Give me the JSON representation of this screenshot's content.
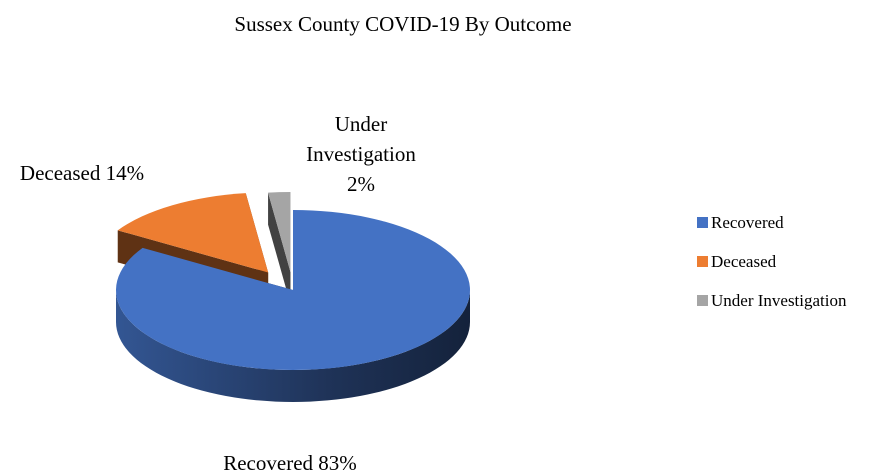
{
  "chart_data": {
    "type": "pie",
    "title": "Sussex County COVID-19 By Outcome",
    "three_d": true,
    "exploded": true,
    "categories": [
      "Recovered",
      "Deceased",
      "Under Investigation"
    ],
    "values": [
      83,
      14,
      2
    ],
    "unit": "%",
    "colors": [
      "#4472C4",
      "#ED7D31",
      "#A5A5A5"
    ],
    "data_labels": [
      {
        "lines": [
          "Recovered 83%"
        ]
      },
      {
        "lines": [
          "Deceased 14%"
        ]
      },
      {
        "lines": [
          "Under",
          "Investigation",
          "2%"
        ]
      }
    ],
    "legend": {
      "position": "right",
      "entries": [
        "Recovered",
        "Deceased",
        "Under Investigation"
      ]
    }
  }
}
